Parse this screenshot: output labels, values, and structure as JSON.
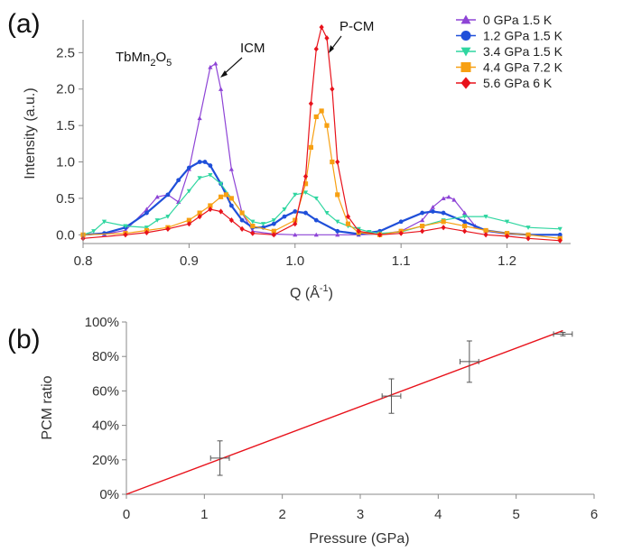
{
  "panel_a_label": "(a)",
  "panel_b_label": "(b)",
  "chart_data": [
    {
      "panel": "(a)",
      "type": "line",
      "xlabel": "Q (Å",
      "xlabel_sup": "-1",
      "xlabel_close": ")",
      "ylabel": "Intensity (a.u.)",
      "xlim": [
        0.8,
        1.26
      ],
      "ylim": [
        -0.12,
        2.95
      ],
      "xticks": [
        0.8,
        0.9,
        1.0,
        1.1,
        1.2
      ],
      "xtick_labels": [
        "0.8",
        "0.9",
        "1.0",
        "1.1",
        "1.2"
      ],
      "yticks": [
        0.0,
        0.5,
        1.0,
        1.5,
        2.0,
        2.5
      ],
      "ytick_labels": [
        "0.0",
        "0.5",
        "1.0",
        "1.5",
        "2.0",
        "2.5"
      ],
      "legend_position": "top-right",
      "annotations": {
        "compound_main": "TbMn",
        "compound_sub1": "2",
        "compound_mid": "O",
        "compound_sub2": "5",
        "icm": "ICM",
        "pcm": "P-CM"
      },
      "series": [
        {
          "name": "0 GPa 1.5 K",
          "color": "#8e44d6",
          "marker": "triangle-up",
          "x": [
            0.8,
            0.82,
            0.84,
            0.86,
            0.87,
            0.88,
            0.89,
            0.9,
            0.91,
            0.92,
            0.925,
            0.93,
            0.94,
            0.95,
            0.96,
            0.98,
            1.0,
            1.02,
            1.04,
            1.06,
            1.08,
            1.1,
            1.12,
            1.13,
            1.14,
            1.145,
            1.15,
            1.16,
            1.17,
            1.18,
            1.2,
            1.22,
            1.25
          ],
          "y": [
            0.0,
            0.01,
            0.06,
            0.35,
            0.52,
            0.55,
            0.45,
            0.9,
            1.6,
            2.3,
            2.35,
            2.0,
            0.9,
            0.3,
            0.05,
            0.01,
            0.0,
            0.0,
            0.0,
            0.0,
            0.01,
            0.05,
            0.2,
            0.38,
            0.5,
            0.52,
            0.48,
            0.3,
            0.12,
            0.05,
            0.01,
            0.0,
            0.0
          ]
        },
        {
          "name": "1.2 GPa 1.5 K",
          "color": "#1f4fd9",
          "marker": "circle",
          "x": [
            0.8,
            0.82,
            0.84,
            0.86,
            0.88,
            0.89,
            0.9,
            0.91,
            0.915,
            0.92,
            0.93,
            0.94,
            0.95,
            0.96,
            0.97,
            0.98,
            0.99,
            1.0,
            1.01,
            1.02,
            1.04,
            1.06,
            1.08,
            1.1,
            1.12,
            1.13,
            1.14,
            1.16,
            1.18,
            1.2,
            1.22,
            1.25
          ],
          "y": [
            0.0,
            0.02,
            0.1,
            0.3,
            0.55,
            0.75,
            0.92,
            1.0,
            1.0,
            0.95,
            0.7,
            0.4,
            0.2,
            0.1,
            0.1,
            0.15,
            0.25,
            0.32,
            0.3,
            0.2,
            0.05,
            0.01,
            0.05,
            0.18,
            0.3,
            0.32,
            0.3,
            0.18,
            0.06,
            0.02,
            0.0,
            0.0
          ]
        },
        {
          "name": "3.4 GPa 1.5 K",
          "color": "#2fd6a0",
          "marker": "triangle-down",
          "x": [
            0.8,
            0.81,
            0.82,
            0.84,
            0.86,
            0.87,
            0.88,
            0.9,
            0.91,
            0.92,
            0.93,
            0.94,
            0.95,
            0.96,
            0.97,
            0.98,
            0.99,
            1.0,
            1.01,
            1.02,
            1.03,
            1.04,
            1.05,
            1.06,
            1.07,
            1.08,
            1.1,
            1.12,
            1.14,
            1.16,
            1.18,
            1.2,
            1.22,
            1.25
          ],
          "y": [
            0.0,
            0.05,
            0.18,
            0.12,
            0.1,
            0.2,
            0.25,
            0.6,
            0.78,
            0.82,
            0.7,
            0.5,
            0.3,
            0.18,
            0.15,
            0.2,
            0.35,
            0.55,
            0.58,
            0.5,
            0.3,
            0.18,
            0.12,
            0.08,
            0.04,
            0.02,
            0.04,
            0.12,
            0.2,
            0.25,
            0.25,
            0.18,
            0.1,
            0.08
          ]
        },
        {
          "name": "4.4 GPa 7.2 K",
          "color": "#f7a012",
          "marker": "square",
          "x": [
            0.8,
            0.84,
            0.86,
            0.88,
            0.9,
            0.91,
            0.92,
            0.93,
            0.935,
            0.94,
            0.95,
            0.96,
            0.98,
            1.0,
            1.01,
            1.015,
            1.02,
            1.025,
            1.03,
            1.035,
            1.04,
            1.05,
            1.06,
            1.08,
            1.1,
            1.12,
            1.14,
            1.16,
            1.18,
            1.2,
            1.22,
            1.25
          ],
          "y": [
            0.0,
            0.02,
            0.06,
            0.1,
            0.2,
            0.3,
            0.4,
            0.52,
            0.55,
            0.5,
            0.3,
            0.12,
            0.05,
            0.2,
            0.7,
            1.2,
            1.62,
            1.7,
            1.5,
            1.0,
            0.55,
            0.15,
            0.03,
            0.0,
            0.05,
            0.12,
            0.18,
            0.12,
            0.06,
            0.02,
            0.0,
            -0.05
          ]
        },
        {
          "name": "5.6 GPa 6 K",
          "color": "#e8121b",
          "marker": "diamond",
          "x": [
            0.8,
            0.84,
            0.86,
            0.88,
            0.9,
            0.91,
            0.92,
            0.93,
            0.94,
            0.95,
            0.96,
            0.98,
            1.0,
            1.01,
            1.015,
            1.02,
            1.025,
            1.03,
            1.035,
            1.04,
            1.05,
            1.06,
            1.08,
            1.1,
            1.12,
            1.14,
            1.16,
            1.18,
            1.2,
            1.22,
            1.25
          ],
          "y": [
            -0.05,
            0.0,
            0.03,
            0.08,
            0.15,
            0.25,
            0.35,
            0.32,
            0.2,
            0.08,
            0.02,
            0.0,
            0.15,
            0.8,
            1.8,
            2.55,
            2.85,
            2.7,
            2.0,
            1.0,
            0.25,
            0.05,
            0.0,
            0.02,
            0.05,
            0.1,
            0.05,
            0.0,
            -0.02,
            -0.05,
            -0.08
          ]
        }
      ]
    },
    {
      "panel": "(b)",
      "type": "scatter",
      "xlabel": "Pressure (GPa)",
      "ylabel": "PCM ratio",
      "xlim": [
        0,
        6
      ],
      "ylim": [
        0,
        100
      ],
      "xticks": [
        0,
        1,
        2,
        3,
        4,
        5,
        6
      ],
      "xtick_labels": [
        "0",
        "1",
        "2",
        "3",
        "4",
        "5",
        "6"
      ],
      "yticks": [
        0,
        20,
        40,
        60,
        80,
        100
      ],
      "ytick_labels": [
        "0%",
        "20%",
        "40%",
        "60%",
        "80%",
        "100%"
      ],
      "points": [
        {
          "x": 1.2,
          "y": 21,
          "xerr": 0.12,
          "yerr": 10
        },
        {
          "x": 3.4,
          "y": 57,
          "xerr": 0.12,
          "yerr": 10
        },
        {
          "x": 4.4,
          "y": 77,
          "xerr": 0.12,
          "yerr": 12
        },
        {
          "x": 5.6,
          "y": 93,
          "xerr": 0.12,
          "yerr": 1
        }
      ],
      "fit_line": {
        "color": "#e8121b",
        "x": [
          0,
          5.6
        ],
        "y": [
          0,
          95
        ]
      }
    }
  ]
}
